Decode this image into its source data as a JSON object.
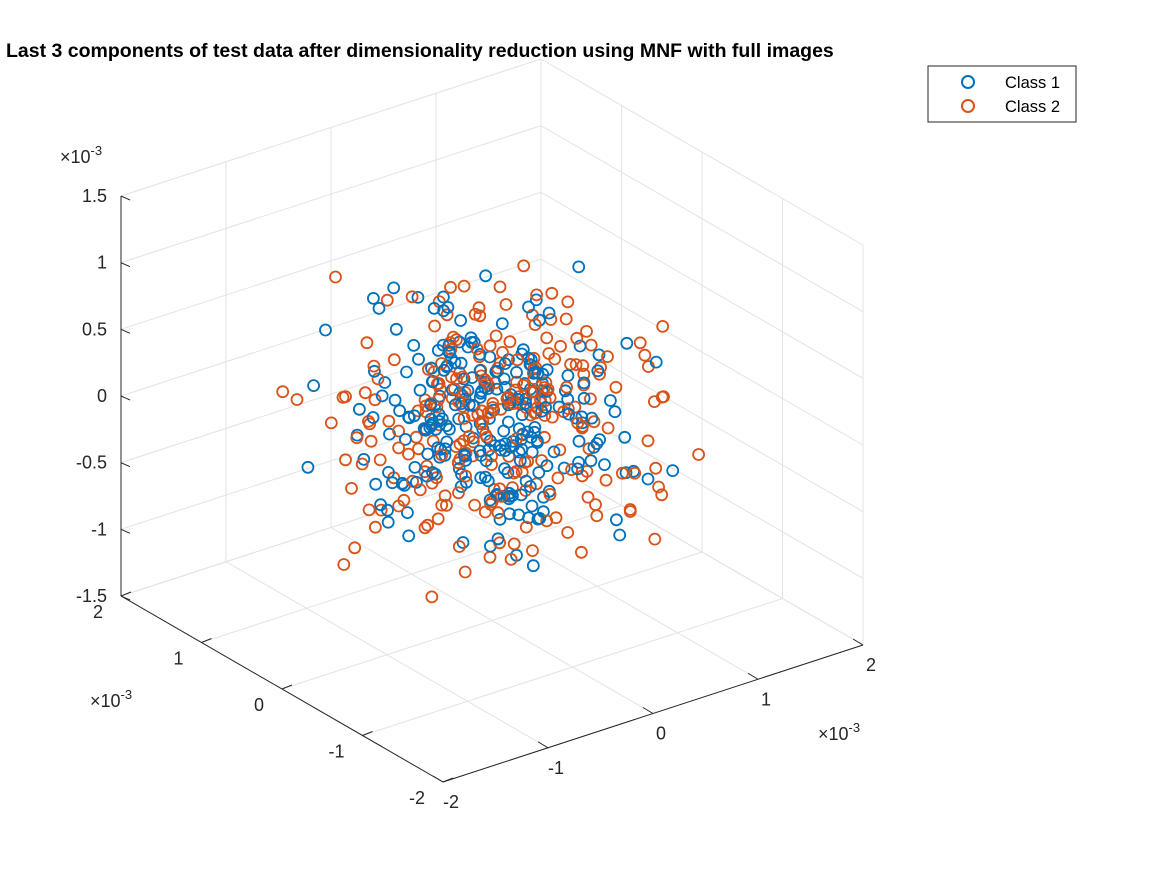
{
  "chart_data": {
    "type": "scatter",
    "subtype": "scatter3d",
    "title": "Last 3 components of test data after dimensionality reduction using MNF with full images",
    "xlabel": "",
    "ylabel": "",
    "zlabel": "",
    "xlim": [
      -0.002,
      0.002
    ],
    "ylim": [
      -0.002,
      0.002
    ],
    "zlim": [
      -0.0015,
      0.0015
    ],
    "grid": true,
    "legend_position": "top-right",
    "marker": "open-circle",
    "axes": {
      "x": {
        "ticks": [
          "-2",
          "-1",
          "0",
          "1",
          "2"
        ],
        "exponent_base": "×10",
        "exponent_power": "-3"
      },
      "y": {
        "ticks": [
          "-2",
          "-1",
          "0",
          "1",
          "2"
        ],
        "exponent_base": "×10",
        "exponent_power": "-3"
      },
      "z": {
        "ticks": [
          "-1.5",
          "-1",
          "-0.5",
          "0",
          "0.5",
          "1",
          "1.5"
        ],
        "exponent_base": "×10",
        "exponent_power": "-3"
      }
    },
    "series": [
      {
        "name": "Class 1",
        "color": "#0072BD",
        "sigma": [
          0.00055,
          0.00055,
          0.00035
        ],
        "count": 260,
        "seed": 7
      },
      {
        "name": "Class 2",
        "color": "#D95319",
        "sigma": [
          0.00062,
          0.00062,
          0.0004
        ],
        "count": 260,
        "seed": 23
      }
    ]
  }
}
